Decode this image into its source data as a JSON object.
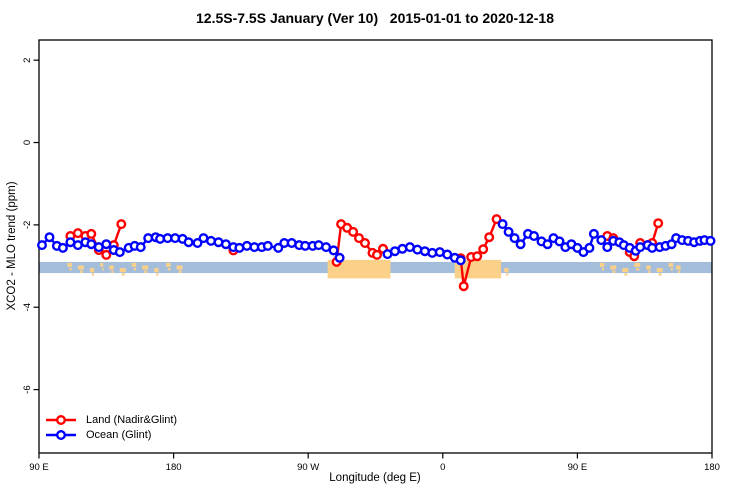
{
  "title": "12.5S-7.5S January (Ver 10)   2015-01-01 to 2020-12-18",
  "axes": {
    "x": {
      "label": "Longitude (deg E)",
      "ticks": [
        {
          "pos": 90,
          "label": "90 E"
        },
        {
          "pos": 180,
          "label": "180"
        },
        {
          "pos": 270,
          "label": "90 W"
        },
        {
          "pos": 360,
          "label": "0"
        },
        {
          "pos": 450,
          "label": "90 E"
        },
        {
          "pos": 540,
          "label": "180"
        }
      ],
      "range": [
        90,
        540
      ]
    },
    "y": {
      "label": "XCO2 - MLO trend (ppm)",
      "ticks": [
        2,
        0,
        -2,
        -4,
        -6
      ],
      "range": [
        -7.54,
        2.49
      ]
    }
  },
  "legend": [
    {
      "label": "Land (Nadir&Glint)",
      "color": "#ff0000"
    },
    {
      "label": "Ocean (Glint)",
      "color": "#0000ff"
    }
  ],
  "colors": {
    "land_series": "#ff0000",
    "ocean_series": "#0000ff",
    "ocean_band": "#a4bddb",
    "land_band": "#fbd089",
    "axis": "#000000"
  },
  "chart_data": {
    "type": "line",
    "marker": "open-circle",
    "title": "12.5S-7.5S January (Ver 10)   2015-01-01 to 2020-12-18",
    "xlabel": "Longitude (deg E)",
    "ylabel": "XCO2 - MLO trend (ppm)",
    "x_note": "display longitude axis wraps 90E -> 180 -> 90W -> 0 -> 90E -> 180, stored as 90..540",
    "xlim": [
      90,
      540
    ],
    "ylim": [
      -7.54,
      2.49
    ],
    "grid": false,
    "legend_position": "bottom-left",
    "series": [
      {
        "name": "Land (Nadir&Glint)",
        "color": "#ff0000",
        "segments": [
          [
            [
              111,
              -2.27
            ],
            [
              116,
              -2.2
            ],
            [
              121,
              -2.27
            ],
            [
              125,
              -2.22
            ],
            [
              130,
              -2.61
            ],
            [
              135,
              -2.73
            ],
            [
              140,
              -2.49
            ],
            [
              145,
              -1.98
            ]
          ],
          [
            [
              220,
              -2.62
            ]
          ],
          [
            [
              289,
              -2.9
            ],
            [
              292,
              -1.98
            ],
            [
              296,
              -2.07
            ],
            [
              300,
              -2.17
            ],
            [
              304,
              -2.32
            ],
            [
              308,
              -2.44
            ],
            [
              313,
              -2.68
            ],
            [
              316,
              -2.73
            ],
            [
              320,
              -2.58
            ]
          ],
          [
            [
              372,
              -2.81
            ],
            [
              374,
              -3.49
            ],
            [
              379,
              -2.78
            ],
            [
              383,
              -2.76
            ],
            [
              387,
              -2.59
            ],
            [
              391,
              -2.3
            ],
            [
              396,
              -1.86
            ]
          ],
          [
            [
              470,
              -2.27
            ],
            [
              474,
              -2.32
            ],
            [
              485,
              -2.66
            ],
            [
              488,
              -2.76
            ],
            [
              492,
              -2.44
            ],
            [
              497,
              -2.49
            ],
            [
              500,
              -2.44
            ],
            [
              504,
              -1.96
            ]
          ]
        ]
      },
      {
        "name": "Ocean (Glint)",
        "color": "#0000ff",
        "segments": [
          [
            [
              92,
              -2.49
            ],
            [
              97,
              -2.3
            ],
            [
              102,
              -2.51
            ],
            [
              106,
              -2.56
            ],
            [
              111,
              -2.42
            ],
            [
              116,
              -2.49
            ],
            [
              121,
              -2.42
            ],
            [
              125,
              -2.47
            ],
            [
              130,
              -2.54
            ],
            [
              135,
              -2.47
            ],
            [
              140,
              -2.61
            ],
            [
              144,
              -2.66
            ],
            [
              150,
              -2.56
            ],
            [
              154,
              -2.51
            ],
            [
              158,
              -2.54
            ],
            [
              163,
              -2.32
            ],
            [
              168,
              -2.3
            ],
            [
              171,
              -2.34
            ],
            [
              176,
              -2.32
            ],
            [
              181,
              -2.32
            ],
            [
              186,
              -2.34
            ],
            [
              190,
              -2.42
            ],
            [
              196,
              -2.44
            ],
            [
              200,
              -2.32
            ],
            [
              205,
              -2.39
            ],
            [
              210,
              -2.42
            ],
            [
              215,
              -2.47
            ],
            [
              220,
              -2.54
            ],
            [
              224,
              -2.56
            ],
            [
              229,
              -2.51
            ],
            [
              234,
              -2.54
            ],
            [
              239,
              -2.54
            ],
            [
              243,
              -2.51
            ],
            [
              250,
              -2.56
            ],
            [
              254,
              -2.44
            ],
            [
              259,
              -2.44
            ],
            [
              264,
              -2.49
            ],
            [
              268,
              -2.51
            ],
            [
              273,
              -2.51
            ],
            [
              277,
              -2.49
            ],
            [
              282,
              -2.54
            ],
            [
              287,
              -2.62
            ],
            [
              291,
              -2.8
            ]
          ],
          [
            [
              323,
              -2.71
            ],
            [
              328,
              -2.64
            ],
            [
              333,
              -2.58
            ],
            [
              338,
              -2.54
            ],
            [
              343,
              -2.6
            ],
            [
              348,
              -2.64
            ],
            [
              353,
              -2.68
            ],
            [
              358,
              -2.66
            ],
            [
              363,
              -2.72
            ],
            [
              368,
              -2.8
            ],
            [
              372,
              -2.86
            ]
          ],
          [
            [
              400,
              -1.98
            ],
            [
              404,
              -2.17
            ],
            [
              408,
              -2.32
            ],
            [
              412,
              -2.47
            ],
            [
              417,
              -2.22
            ],
            [
              421,
              -2.27
            ],
            [
              426,
              -2.4
            ],
            [
              430,
              -2.47
            ],
            [
              434,
              -2.32
            ],
            [
              438,
              -2.4
            ],
            [
              442,
              -2.54
            ],
            [
              446,
              -2.47
            ],
            [
              450,
              -2.56
            ],
            [
              454,
              -2.66
            ],
            [
              458,
              -2.56
            ],
            [
              461,
              -2.22
            ],
            [
              466,
              -2.37
            ],
            [
              470,
              -2.54
            ],
            [
              474,
              -2.39
            ],
            [
              478,
              -2.42
            ],
            [
              481,
              -2.49
            ],
            [
              485,
              -2.56
            ],
            [
              489,
              -2.63
            ],
            [
              492,
              -2.54
            ],
            [
              497,
              -2.49
            ],
            [
              500,
              -2.56
            ],
            [
              505,
              -2.54
            ],
            [
              509,
              -2.51
            ],
            [
              513,
              -2.47
            ],
            [
              516,
              -2.32
            ],
            [
              520,
              -2.37
            ],
            [
              524,
              -2.39
            ],
            [
              528,
              -2.42
            ],
            [
              532,
              -2.39
            ],
            [
              535,
              -2.37
            ],
            [
              539,
              -2.39
            ]
          ]
        ]
      }
    ],
    "band": {
      "description": "ocean/land strip along latitude belt",
      "y_top": -2.9,
      "y_bottom": -3.17,
      "block_y_top": -2.85,
      "block_y_bottom": -3.3,
      "lon_range": [
        90,
        540
      ],
      "land_blocks": [
        [
          283,
          325
        ],
        [
          368,
          399
        ]
      ],
      "land_speckles": [
        [
          109,
          112
        ],
        [
          116,
          120
        ],
        [
          124,
          127
        ],
        [
          131,
          133
        ],
        [
          137,
          140
        ],
        [
          144,
          148
        ],
        [
          152,
          155
        ],
        [
          159,
          163
        ],
        [
          167,
          170
        ],
        [
          175,
          178
        ],
        [
          182,
          186
        ],
        [
          401,
          404
        ],
        [
          465,
          468
        ],
        [
          472,
          476
        ],
        [
          480,
          484
        ],
        [
          488,
          492
        ],
        [
          496,
          499
        ],
        [
          503,
          507
        ],
        [
          511,
          514
        ],
        [
          516,
          519
        ]
      ]
    }
  }
}
